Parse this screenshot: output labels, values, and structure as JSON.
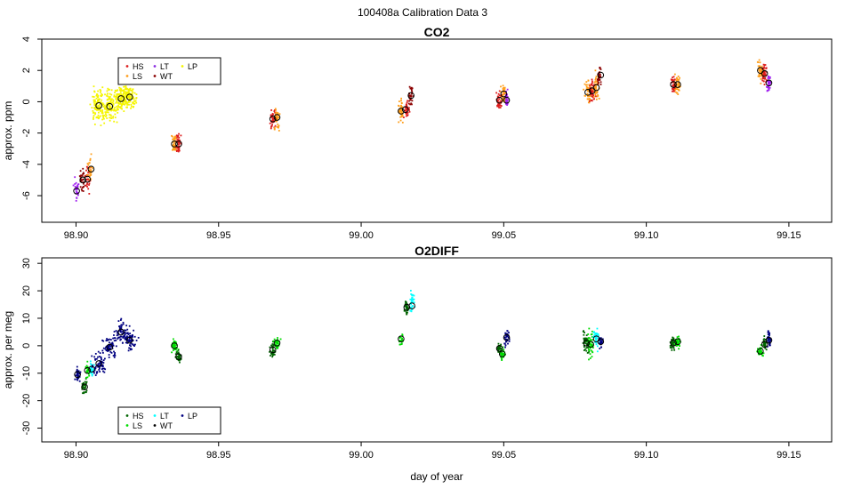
{
  "page": {
    "main_title": "100408a   Calibration Data 3"
  },
  "chart_data": [
    {
      "type": "scatter",
      "title": "CO2",
      "xlabel": "",
      "ylabel": "approx. ppm",
      "xlim": [
        98.888,
        99.165
      ],
      "ylim": [
        -7.7,
        4.0
      ],
      "xticks": [
        98.9,
        98.95,
        99.0,
        99.05,
        99.1,
        99.15
      ],
      "xtick_labels": [
        "98.90",
        "98.95",
        "99.00",
        "99.05",
        "99.10",
        "99.15"
      ],
      "yticks": [
        -6,
        -4,
        -2,
        0,
        2,
        4
      ],
      "ytick_labels": [
        "-6",
        "-4",
        "-2",
        "0",
        "2",
        "4"
      ],
      "legend": {
        "position": "top-left",
        "entries": [
          {
            "label": "HS",
            "color": "#dd1c1c"
          },
          {
            "label": "LS",
            "color": "#ff9f1c"
          },
          {
            "label": "LT",
            "color": "#8a2be2"
          },
          {
            "label": "WT",
            "color": "#8b0000"
          },
          {
            "label": "LP",
            "color": "#f5f500"
          }
        ]
      },
      "clusters": [
        {
          "series": "LT",
          "color": "#a020f0",
          "x_center": 98.9002,
          "x_spread": 0.0007,
          "y_center": -5.7,
          "y_spread": 0.7,
          "n": 30,
          "mean_x": 98.9002,
          "mean_y": -5.7
        },
        {
          "series": "WT",
          "color": "#8b0000",
          "x_center": 98.9022,
          "x_spread": 0.0008,
          "y_center": -5.0,
          "y_spread": 0.6,
          "n": 30,
          "mean_x": 98.9024,
          "mean_y": -5.0
        },
        {
          "series": "HS",
          "color": "#dd1c1c",
          "x_center": 98.904,
          "x_spread": 0.0008,
          "y_center": -4.9,
          "y_spread": 0.7,
          "n": 28,
          "mean_x": 98.904,
          "mean_y": -4.95
        },
        {
          "series": "LS",
          "color": "#ff9f1c",
          "x_center": 98.905,
          "x_spread": 0.0007,
          "y_center": -4.3,
          "y_spread": 0.7,
          "n": 28,
          "mean_x": 98.9053,
          "mean_y": -4.3
        },
        {
          "series": "LP",
          "color": "#f5f500",
          "x_center": 98.908,
          "x_spread": 0.002,
          "y_center": -0.3,
          "y_spread": 0.9,
          "n": 110,
          "mean_x": 98.908,
          "mean_y": -0.25
        },
        {
          "series": "LP",
          "color": "#f5f500",
          "x_center": 98.9118,
          "x_spread": 0.002,
          "y_center": -0.3,
          "y_spread": 0.9,
          "n": 110,
          "mean_x": 98.9118,
          "mean_y": -0.3
        },
        {
          "series": "LP",
          "color": "#f5f500",
          "x_center": 98.9158,
          "x_spread": 0.002,
          "y_center": 0.2,
          "y_spread": 0.7,
          "n": 110,
          "mean_x": 98.9158,
          "mean_y": 0.2
        },
        {
          "series": "LP",
          "color": "#f5f500",
          "x_center": 98.9188,
          "x_spread": 0.0018,
          "y_center": 0.3,
          "y_spread": 0.7,
          "n": 110,
          "mean_x": 98.9188,
          "mean_y": 0.3
        },
        {
          "series": "LS",
          "color": "#ff9f1c",
          "x_center": 98.9345,
          "x_spread": 0.0008,
          "y_center": -2.7,
          "y_spread": 0.6,
          "n": 40,
          "mean_x": 98.9345,
          "mean_y": -2.7
        },
        {
          "series": "HS",
          "color": "#dd1c1c",
          "x_center": 98.936,
          "x_spread": 0.0008,
          "y_center": -2.7,
          "y_spread": 0.6,
          "n": 40,
          "mean_x": 98.936,
          "mean_y": -2.7
        },
        {
          "series": "HS",
          "color": "#dd1c1c",
          "x_center": 98.969,
          "x_spread": 0.0008,
          "y_center": -1.1,
          "y_spread": 0.6,
          "n": 40,
          "mean_x": 98.969,
          "mean_y": -1.1
        },
        {
          "series": "LS",
          "color": "#ff9f1c",
          "x_center": 98.9705,
          "x_spread": 0.0008,
          "y_center": -1.0,
          "y_spread": 0.7,
          "n": 40,
          "mean_x": 98.9705,
          "mean_y": -1.0
        },
        {
          "series": "LS",
          "color": "#ff9f1c",
          "x_center": 99.014,
          "x_spread": 0.0008,
          "y_center": -0.6,
          "y_spread": 0.5,
          "n": 40,
          "mean_x": 99.014,
          "mean_y": -0.6
        },
        {
          "series": "HS",
          "color": "#dd1c1c",
          "x_center": 99.016,
          "x_spread": 0.0008,
          "y_center": -0.5,
          "y_spread": 0.6,
          "n": 40,
          "mean_x": 99.0155,
          "mean_y": -0.5
        },
        {
          "series": "WT",
          "color": "#8b0000",
          "x_center": 99.0175,
          "x_spread": 0.0006,
          "y_center": 0.4,
          "y_spread": 0.5,
          "n": 30,
          "mean_x": 99.0175,
          "mean_y": 0.4
        },
        {
          "series": "HS",
          "color": "#dd1c1c",
          "x_center": 99.0485,
          "x_spread": 0.0008,
          "y_center": 0.1,
          "y_spread": 0.5,
          "n": 40,
          "mean_x": 99.0485,
          "mean_y": 0.1
        },
        {
          "series": "LS",
          "color": "#ff9f1c",
          "x_center": 99.05,
          "x_spread": 0.0007,
          "y_center": 0.5,
          "y_spread": 0.5,
          "n": 35,
          "mean_x": 99.05,
          "mean_y": 0.5
        },
        {
          "series": "LT",
          "color": "#a020f0",
          "x_center": 99.051,
          "x_spread": 0.0006,
          "y_center": 0.1,
          "y_spread": 0.5,
          "n": 30,
          "mean_x": 99.051,
          "mean_y": 0.1
        },
        {
          "series": "LS",
          "color": "#ff9f1c",
          "x_center": 99.0795,
          "x_spread": 0.001,
          "y_center": 0.6,
          "y_spread": 0.7,
          "n": 45,
          "mean_x": 99.0795,
          "mean_y": 0.6
        },
        {
          "series": "HS",
          "color": "#dd1c1c",
          "x_center": 99.081,
          "x_spread": 0.001,
          "y_center": 0.7,
          "y_spread": 0.7,
          "n": 45,
          "mean_x": 99.081,
          "mean_y": 0.7
        },
        {
          "series": "LS",
          "color": "#ff9f1c",
          "x_center": 99.0825,
          "x_spread": 0.0008,
          "y_center": 0.9,
          "y_spread": 0.7,
          "n": 40,
          "mean_x": 99.0825,
          "mean_y": 0.9
        },
        {
          "series": "WT",
          "color": "#8b0000",
          "x_center": 99.0835,
          "x_spread": 0.0006,
          "y_center": 1.7,
          "y_spread": 0.5,
          "n": 30,
          "mean_x": 99.084,
          "mean_y": 1.7
        },
        {
          "series": "HS",
          "color": "#dd1c1c",
          "x_center": 99.1095,
          "x_spread": 0.0008,
          "y_center": 1.1,
          "y_spread": 0.6,
          "n": 40,
          "mean_x": 99.1095,
          "mean_y": 1.1
        },
        {
          "series": "LS",
          "color": "#ff9f1c",
          "x_center": 99.111,
          "x_spread": 0.0008,
          "y_center": 1.1,
          "y_spread": 0.6,
          "n": 40,
          "mean_x": 99.111,
          "mean_y": 1.1
        },
        {
          "series": "LS",
          "color": "#ff9f1c",
          "x_center": 99.14,
          "x_spread": 0.0008,
          "y_center": 2.0,
          "y_spread": 0.6,
          "n": 40,
          "mean_x": 99.14,
          "mean_y": 2.0
        },
        {
          "series": "HS",
          "color": "#dd1c1c",
          "x_center": 99.1415,
          "x_spread": 0.0008,
          "y_center": 1.8,
          "y_spread": 0.6,
          "n": 40,
          "mean_x": 99.1415,
          "mean_y": 1.8
        },
        {
          "series": "LT",
          "color": "#a020f0",
          "x_center": 99.143,
          "x_spread": 0.0006,
          "y_center": 1.2,
          "y_spread": 0.5,
          "n": 30,
          "mean_x": 99.143,
          "mean_y": 1.2
        }
      ]
    },
    {
      "type": "scatter",
      "title": "O2DIFF",
      "xlabel": "day of year",
      "ylabel": "approx. per meg",
      "xlim": [
        98.888,
        99.165
      ],
      "ylim": [
        -35,
        32
      ],
      "xticks": [
        98.9,
        98.95,
        99.0,
        99.05,
        99.1,
        99.15
      ],
      "xtick_labels": [
        "98.90",
        "98.95",
        "99.00",
        "99.05",
        "99.10",
        "99.15"
      ],
      "yticks": [
        -30,
        -20,
        -10,
        0,
        10,
        20,
        30
      ],
      "ytick_labels": [
        "-30",
        "-20",
        "-10",
        "0",
        "10",
        "20",
        "30"
      ],
      "legend": {
        "position": "bottom-left",
        "entries": [
          {
            "label": "HS",
            "color": "#006400"
          },
          {
            "label": "LS",
            "color": "#00dd00"
          },
          {
            "label": "LT",
            "color": "#00ffff"
          },
          {
            "label": "WT",
            "color": "#000000"
          },
          {
            "label": "LP",
            "color": "#000080"
          }
        ]
      },
      "clusters": [
        {
          "series": "LP",
          "color": "#000080",
          "x_center": 98.9005,
          "x_spread": 0.0008,
          "y_center": -10.5,
          "y_spread": 2.5,
          "n": 30,
          "mean_x": 98.9005,
          "mean_y": -10.5
        },
        {
          "series": "HS",
          "color": "#006400",
          "x_center": 98.903,
          "x_spread": 0.0008,
          "y_center": -15.0,
          "y_spread": 2.5,
          "n": 30,
          "mean_x": 98.903,
          "mean_y": -15.0
        },
        {
          "series": "LS",
          "color": "#00dd00",
          "x_center": 98.904,
          "x_spread": 0.0007,
          "y_center": -9.0,
          "y_spread": 2.5,
          "n": 28,
          "mean_x": 98.904,
          "mean_y": -9.0
        },
        {
          "series": "LT",
          "color": "#00ffff",
          "x_center": 98.9055,
          "x_spread": 0.0007,
          "y_center": -8.5,
          "y_spread": 2.5,
          "n": 28,
          "mean_x": 98.9055,
          "mean_y": -8.5
        },
        {
          "series": "LP",
          "color": "#000080",
          "x_center": 98.908,
          "x_spread": 0.002,
          "y_center": -6.5,
          "y_spread": 3.5,
          "n": 60,
          "mean_x": 98.908,
          "mean_y": -6.5
        },
        {
          "series": "LP",
          "color": "#000080",
          "x_center": 98.9118,
          "x_spread": 0.002,
          "y_center": -0.5,
          "y_spread": 3.5,
          "n": 60,
          "mean_x": 98.9118,
          "mean_y": -0.5
        },
        {
          "series": "LP",
          "color": "#000080",
          "x_center": 98.9158,
          "x_spread": 0.002,
          "y_center": 5.0,
          "y_spread": 3.5,
          "n": 60,
          "mean_x": 98.9158,
          "mean_y": 5.0
        },
        {
          "series": "LP",
          "color": "#000080",
          "x_center": 98.9188,
          "x_spread": 0.0018,
          "y_center": 2.0,
          "y_spread": 3.0,
          "n": 60,
          "mean_x": 98.9188,
          "mean_y": 2.0
        },
        {
          "series": "LS",
          "color": "#00dd00",
          "x_center": 98.9345,
          "x_spread": 0.0008,
          "y_center": 0.0,
          "y_spread": 2.0,
          "n": 40,
          "mean_x": 98.9345,
          "mean_y": 0.0
        },
        {
          "series": "HS",
          "color": "#006400",
          "x_center": 98.936,
          "x_spread": 0.0008,
          "y_center": -4.0,
          "y_spread": 2.0,
          "n": 35,
          "mean_x": 98.936,
          "mean_y": -4.0
        },
        {
          "series": "HS",
          "color": "#006400",
          "x_center": 98.969,
          "x_spread": 0.0008,
          "y_center": -1.5,
          "y_spread": 2.0,
          "n": 35,
          "mean_x": 98.969,
          "mean_y": -1.5
        },
        {
          "series": "LS",
          "color": "#00dd00",
          "x_center": 98.9705,
          "x_spread": 0.0008,
          "y_center": 1.0,
          "y_spread": 2.0,
          "n": 35,
          "mean_x": 98.9705,
          "mean_y": 1.0
        },
        {
          "series": "LS",
          "color": "#00dd00",
          "x_center": 99.014,
          "x_spread": 0.0006,
          "y_center": 2.5,
          "y_spread": 2.0,
          "n": 20,
          "mean_x": 99.014,
          "mean_y": 2.5
        },
        {
          "series": "HS",
          "color": "#006400",
          "x_center": 99.016,
          "x_spread": 0.0007,
          "y_center": 14.0,
          "y_spread": 3.0,
          "n": 35,
          "mean_x": 99.016,
          "mean_y": 14.0
        },
        {
          "series": "LT",
          "color": "#00ffff",
          "x_center": 99.0178,
          "x_spread": 0.0007,
          "y_center": 16.0,
          "y_spread": 4.0,
          "n": 35,
          "mean_x": 99.0178,
          "mean_y": 14.5
        },
        {
          "series": "HS",
          "color": "#006400",
          "x_center": 99.0485,
          "x_spread": 0.0007,
          "y_center": -1.0,
          "y_spread": 2.0,
          "n": 30,
          "mean_x": 99.0485,
          "mean_y": -1.0
        },
        {
          "series": "LS",
          "color": "#00dd00",
          "x_center": 99.0495,
          "x_spread": 0.0007,
          "y_center": -3.0,
          "y_spread": 2.0,
          "n": 30,
          "mean_x": 99.0495,
          "mean_y": -3.0
        },
        {
          "series": "LP",
          "color": "#000080",
          "x_center": 99.051,
          "x_spread": 0.0007,
          "y_center": 3.0,
          "y_spread": 2.5,
          "n": 30,
          "mean_x": 99.051,
          "mean_y": 3.0
        },
        {
          "series": "HS",
          "color": "#006400",
          "x_center": 99.079,
          "x_spread": 0.001,
          "y_center": 1.0,
          "y_spread": 4.0,
          "n": 45,
          "mean_x": 99.079,
          "mean_y": 1.0
        },
        {
          "series": "LS",
          "color": "#00dd00",
          "x_center": 99.0805,
          "x_spread": 0.001,
          "y_center": 1.0,
          "y_spread": 5.0,
          "n": 45,
          "mean_x": 99.0805,
          "mean_y": 0.5
        },
        {
          "series": "LT",
          "color": "#00ffff",
          "x_center": 99.0825,
          "x_spread": 0.0008,
          "y_center": 2.5,
          "y_spread": 3.0,
          "n": 35,
          "mean_x": 99.0825,
          "mean_y": 2.5
        },
        {
          "series": "LP",
          "color": "#000080",
          "x_center": 99.084,
          "x_spread": 0.0006,
          "y_center": 1.5,
          "y_spread": 2.0,
          "n": 25,
          "mean_x": 99.084,
          "mean_y": 1.5
        },
        {
          "series": "HS",
          "color": "#006400",
          "x_center": 99.1095,
          "x_spread": 0.0008,
          "y_center": 1.0,
          "y_spread": 2.0,
          "n": 35,
          "mean_x": 99.1095,
          "mean_y": 1.0
        },
        {
          "series": "LS",
          "color": "#00dd00",
          "x_center": 99.111,
          "x_spread": 0.0008,
          "y_center": 1.5,
          "y_spread": 2.0,
          "n": 35,
          "mean_x": 99.111,
          "mean_y": 1.5
        },
        {
          "series": "LS",
          "color": "#00dd00",
          "x_center": 99.14,
          "x_spread": 0.0008,
          "y_center": -2.0,
          "y_spread": 2.0,
          "n": 35,
          "mean_x": 99.14,
          "mean_y": -2.0
        },
        {
          "series": "HS",
          "color": "#006400",
          "x_center": 99.1415,
          "x_spread": 0.0007,
          "y_center": 0.5,
          "y_spread": 2.0,
          "n": 30,
          "mean_x": 99.1415,
          "mean_y": 0.5
        },
        {
          "series": "LP",
          "color": "#000080",
          "x_center": 99.143,
          "x_spread": 0.0006,
          "y_center": 2.0,
          "y_spread": 3.0,
          "n": 30,
          "mean_x": 99.143,
          "mean_y": 2.0
        }
      ]
    }
  ]
}
